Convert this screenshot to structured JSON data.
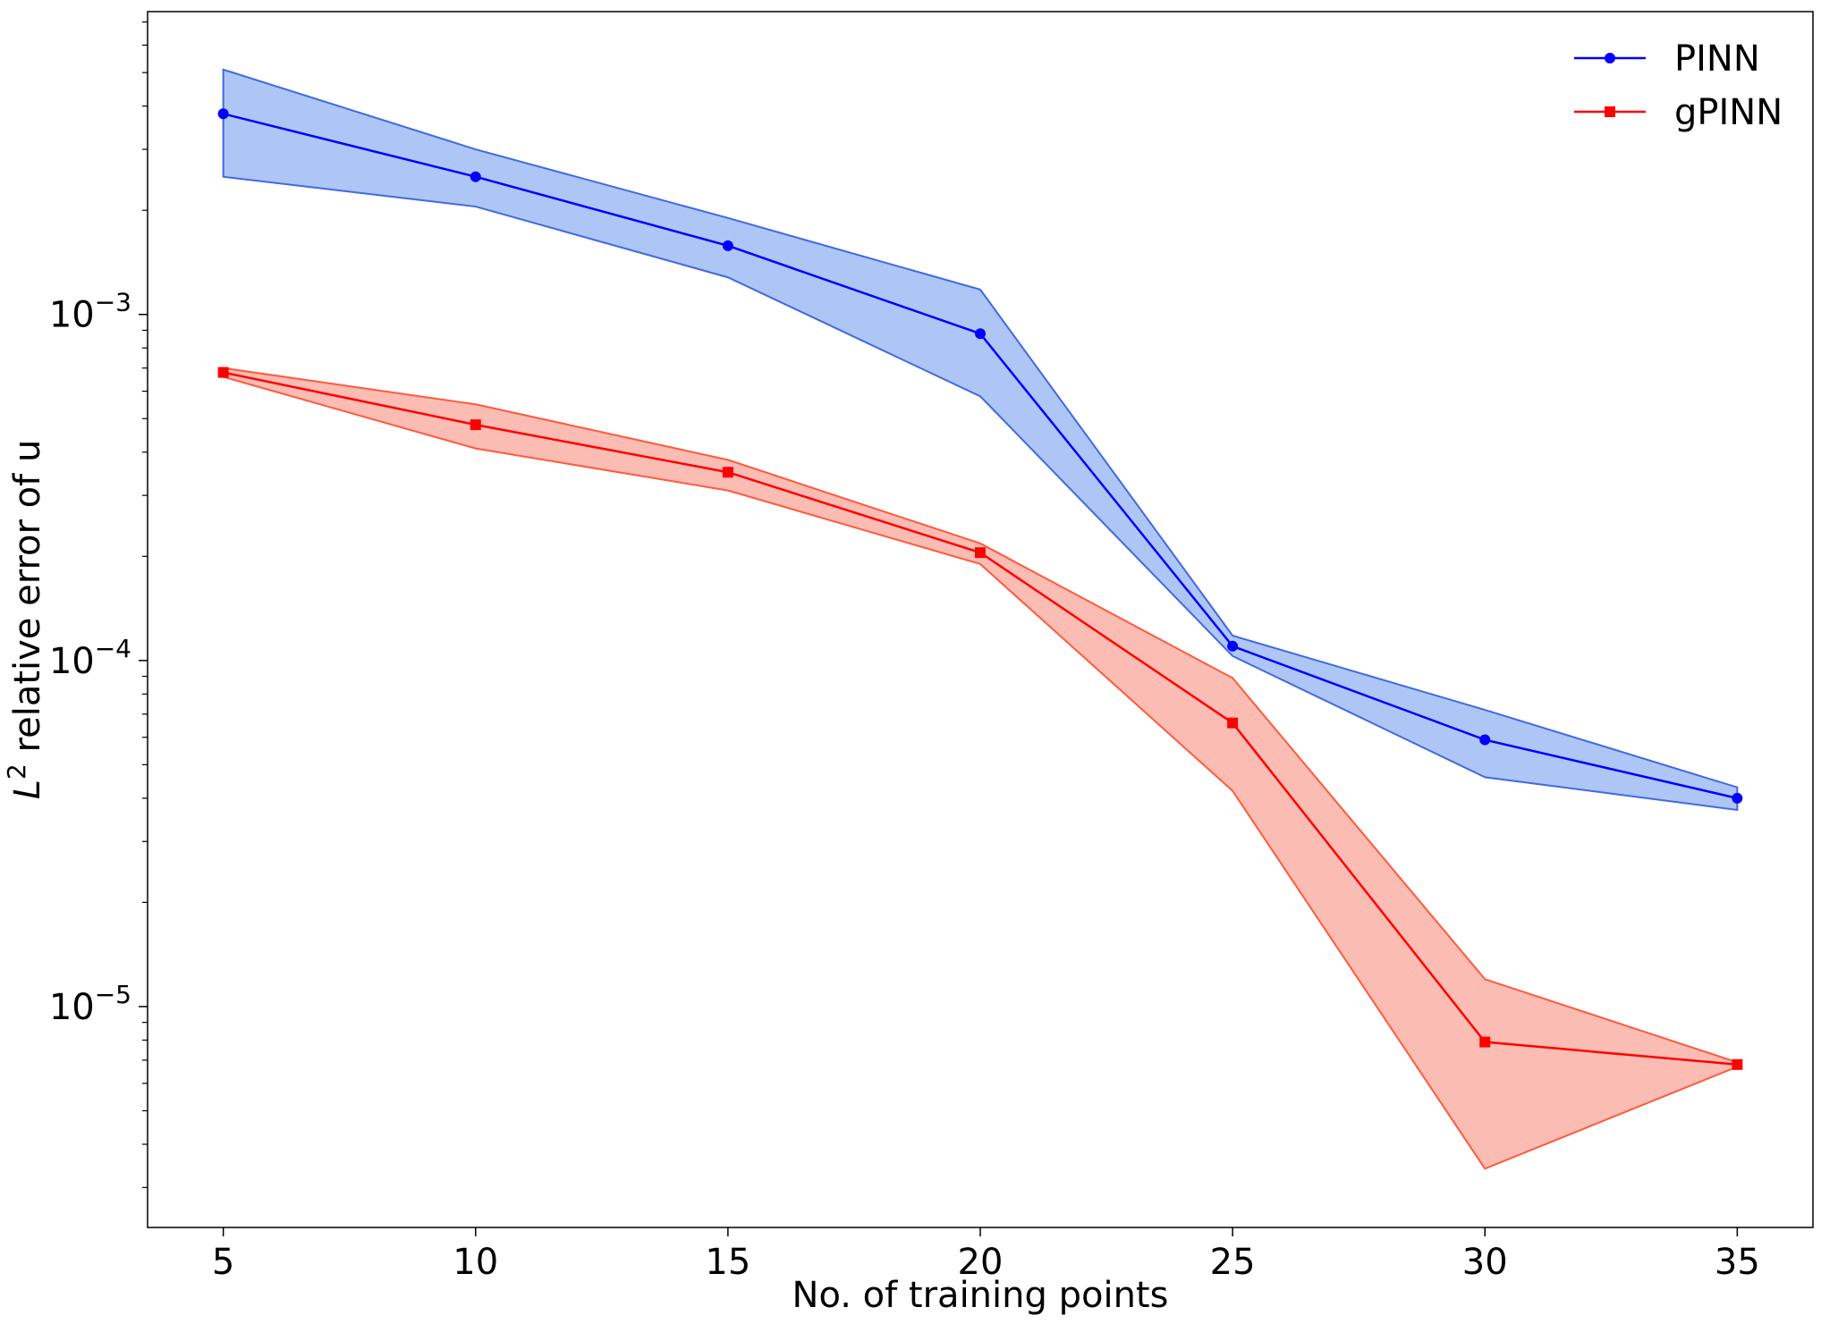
{
  "chart_data": {
    "type": "line",
    "xlabel": "No. of training points",
    "ylabel": {
      "base": "L",
      "sup": "2",
      "rest": " relative error of u"
    },
    "yscale": "log",
    "xlim": [
      3.5,
      36.5
    ],
    "ylim": [
      2.3e-06,
      0.0075
    ],
    "x": [
      5,
      10,
      15,
      20,
      25,
      30,
      35
    ],
    "x_tick_labels": [
      "5",
      "10",
      "15",
      "20",
      "25",
      "30",
      "35"
    ],
    "y_ticks": [
      {
        "value": 0.001,
        "mantissa": "10",
        "exp": "−3"
      },
      {
        "value": 0.0001,
        "mantissa": "10",
        "exp": "−4"
      },
      {
        "value": 1e-05,
        "mantissa": "10",
        "exp": "−5"
      }
    ],
    "grid": false,
    "legend_position": "top-right",
    "series": [
      {
        "name": "PINN",
        "color": "#0000ff",
        "band_fill": "#aec6f5",
        "band_edge": "#4169e1",
        "marker": "circle",
        "values": [
          0.0038,
          0.0025,
          0.00158,
          0.00088,
          0.00011,
          5.9e-05,
          4e-05
        ],
        "upper": [
          0.0051,
          0.003,
          0.0019,
          0.00118,
          0.000118,
          7.2e-05,
          4.3e-05
        ],
        "lower": [
          0.0025,
          0.00205,
          0.00128,
          0.00058,
          0.000103,
          4.6e-05,
          3.7e-05
        ]
      },
      {
        "name": "gPINN",
        "color": "#ff0000",
        "band_fill": "#fbbcb4",
        "band_edge": "#ff5a3c",
        "marker": "square",
        "values": [
          0.00068,
          0.00048,
          0.00035,
          0.000205,
          6.6e-05,
          7.9e-06,
          6.8e-06
        ],
        "upper": [
          0.0007,
          0.00055,
          0.00038,
          0.000218,
          8.9e-05,
          1.2e-05,
          6.9e-06
        ],
        "lower": [
          0.00066,
          0.00041,
          0.00031,
          0.00019,
          4.2e-05,
          3.4e-06,
          6.7e-06
        ]
      }
    ]
  }
}
